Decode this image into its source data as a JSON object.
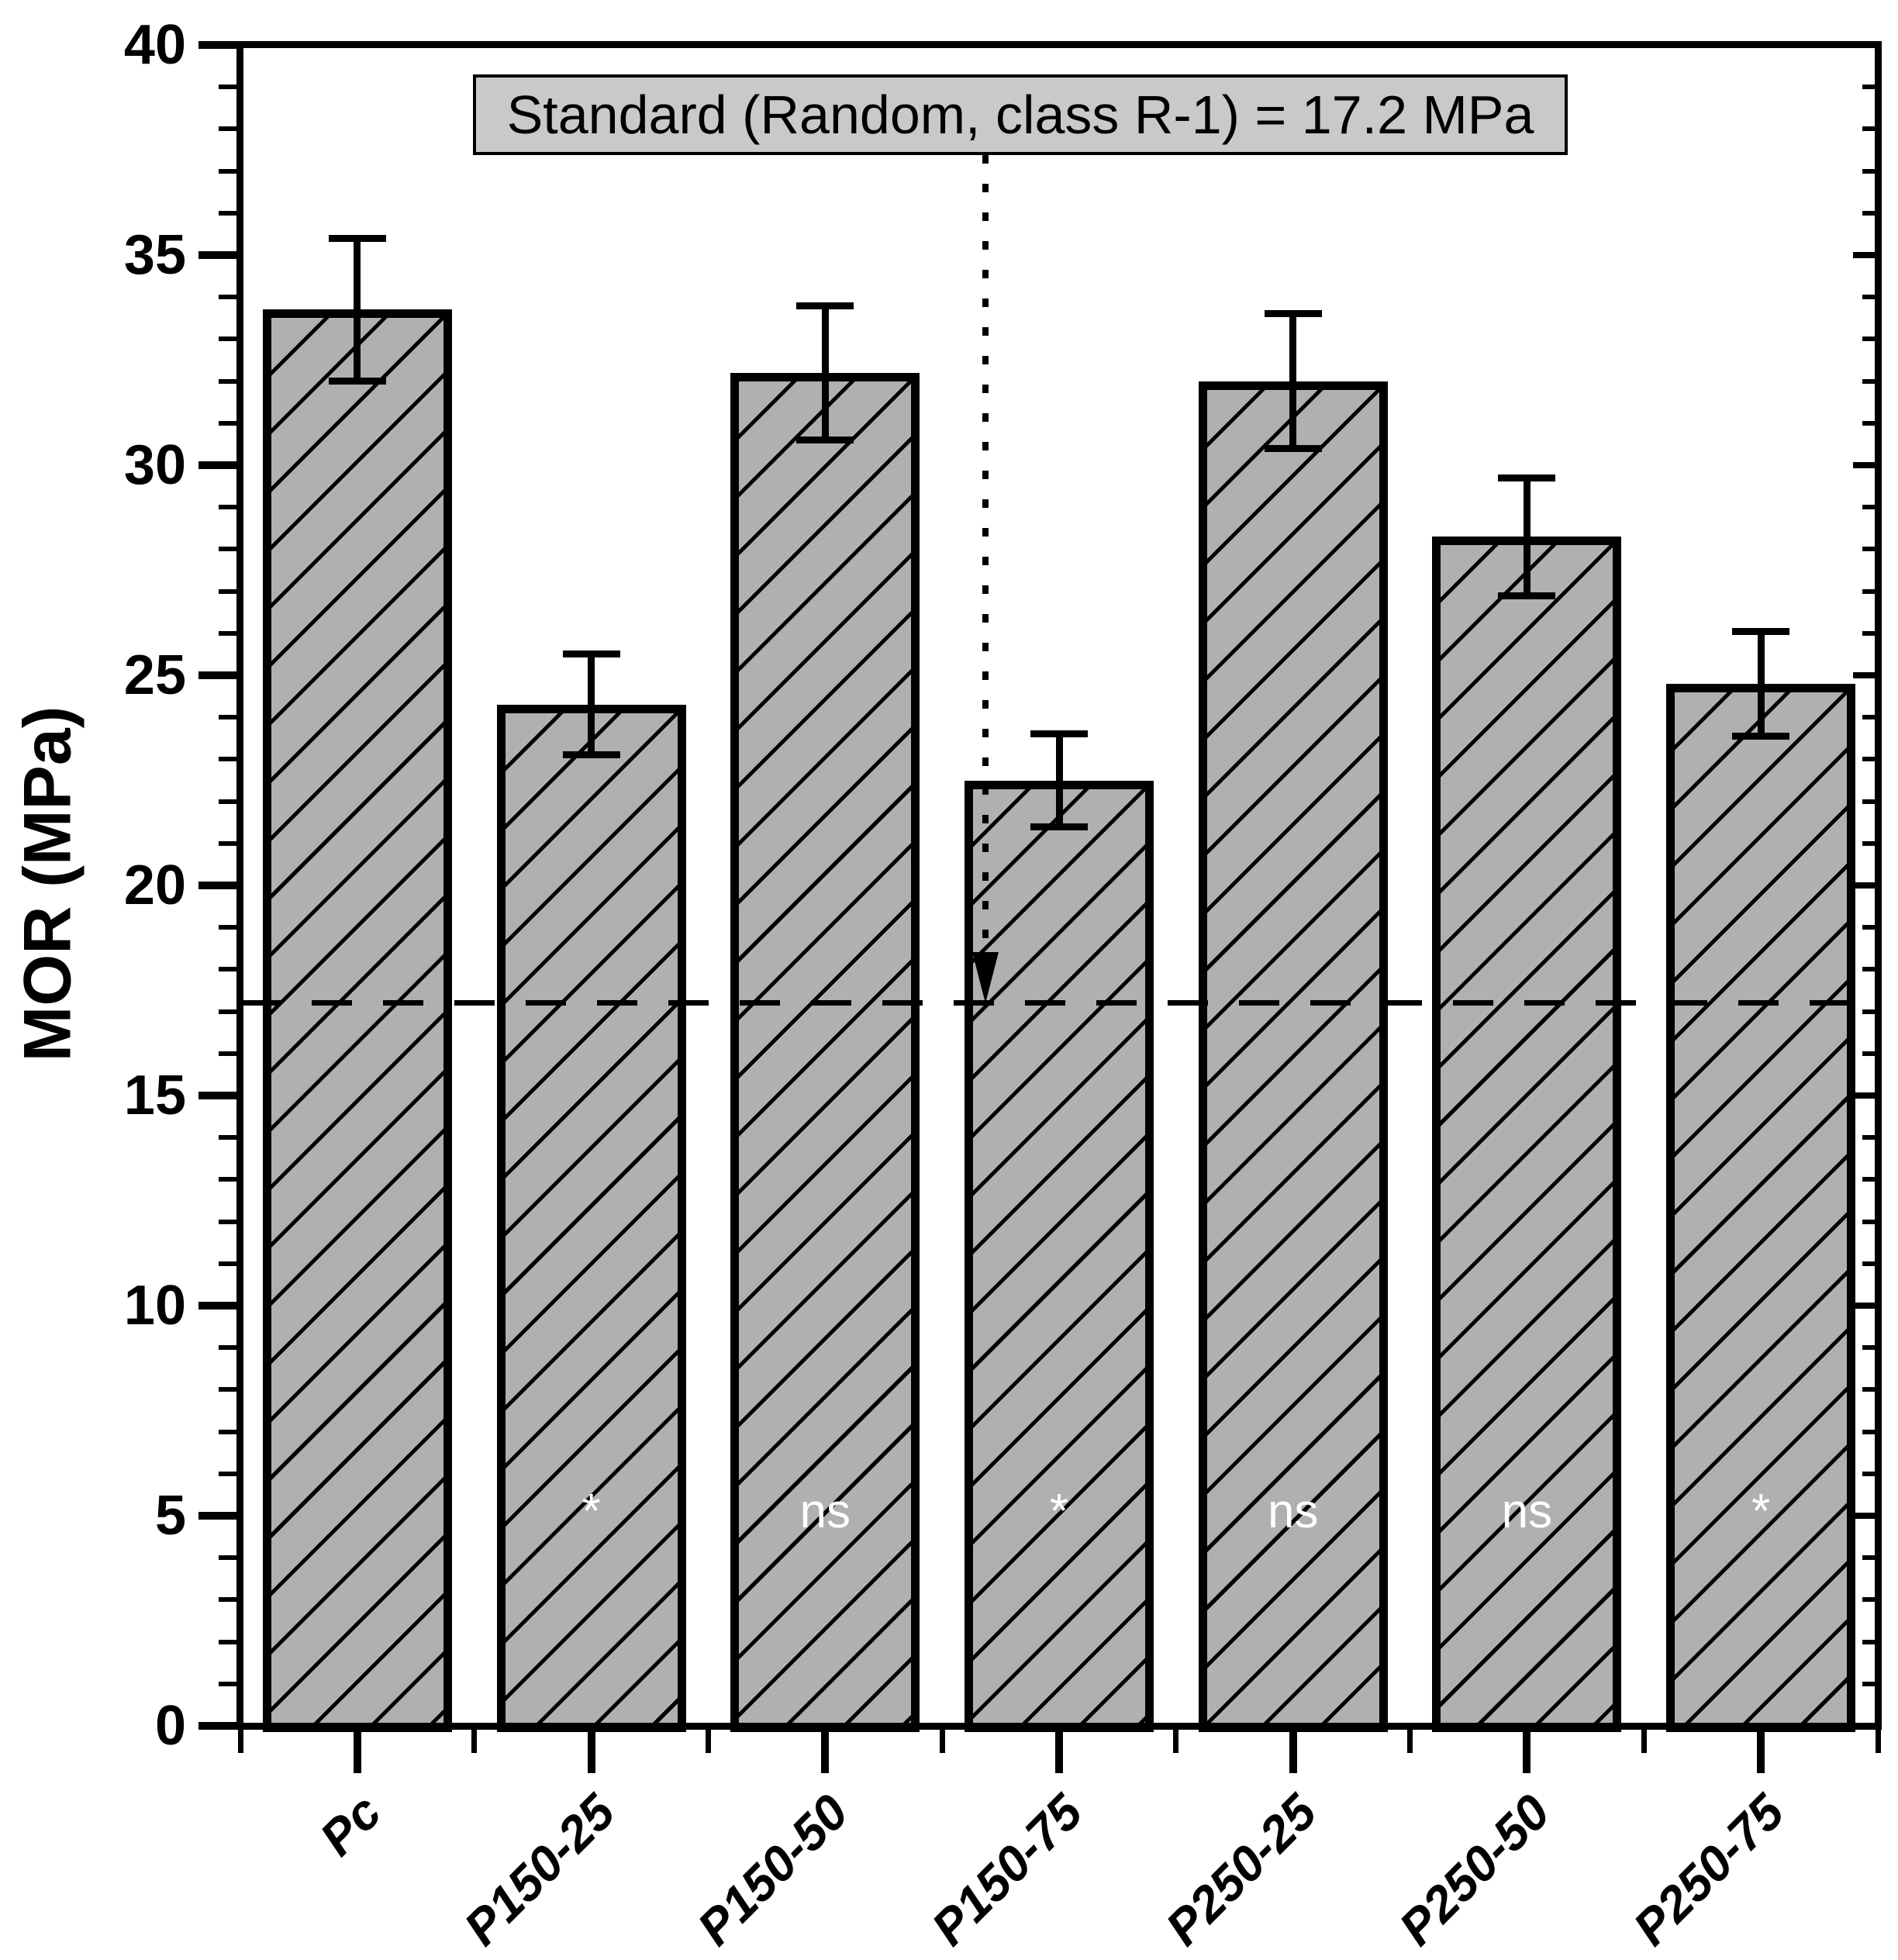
{
  "figure": {
    "background_color": "#ffffff",
    "annotation_box": {
      "text": "Standard (Random, class R-1) = 17.2 MPa",
      "fill_color": "#c9c9c9",
      "border_color": "#000000",
      "text_color": "#000000"
    },
    "colors": {
      "bar_fill": "#b0b0b0",
      "bar_edge": "#000000",
      "hatch_line": "#000000",
      "significance_text": "#ffffff",
      "axis": "#000000",
      "reference_line": "#000000"
    }
  },
  "chart_data": {
    "type": "bar",
    "title": "Standard (Random, class R-1) = 17.2 MPa",
    "categories": [
      "Pc",
      "P150-25",
      "P150-50",
      "P150-75",
      "P250-25",
      "P250-50",
      "P250-75"
    ],
    "values": [
      33.7,
      24.3,
      32.2,
      22.5,
      32.0,
      28.3,
      24.8
    ],
    "error_bars": [
      1.7,
      1.2,
      1.6,
      1.1,
      1.6,
      1.4,
      1.25
    ],
    "significance_labels": [
      "",
      "*",
      "ns",
      "*",
      "ns",
      "ns",
      "*"
    ],
    "significance_label_y_value": 5.1,
    "ylabel": "MOR (MPa)",
    "ylim": [
      0,
      40
    ],
    "y_major_tick_step": 5,
    "y_minor_tick_step": 1,
    "y_tick_labels": [
      "0",
      "5",
      "10",
      "15",
      "20",
      "25",
      "30",
      "35",
      "40"
    ],
    "reference_line": {
      "value": 17.2,
      "orientation": "horizontal",
      "style": "dashed"
    },
    "annotation_arrow": {
      "category": "P150-75",
      "points_to_value": 17.2,
      "line_style": "dotted-vertical"
    },
    "bar_style": {
      "hatch": "diagonal-forward",
      "fill": "#b0b0b0"
    },
    "grid": false,
    "legend_position": "none"
  }
}
